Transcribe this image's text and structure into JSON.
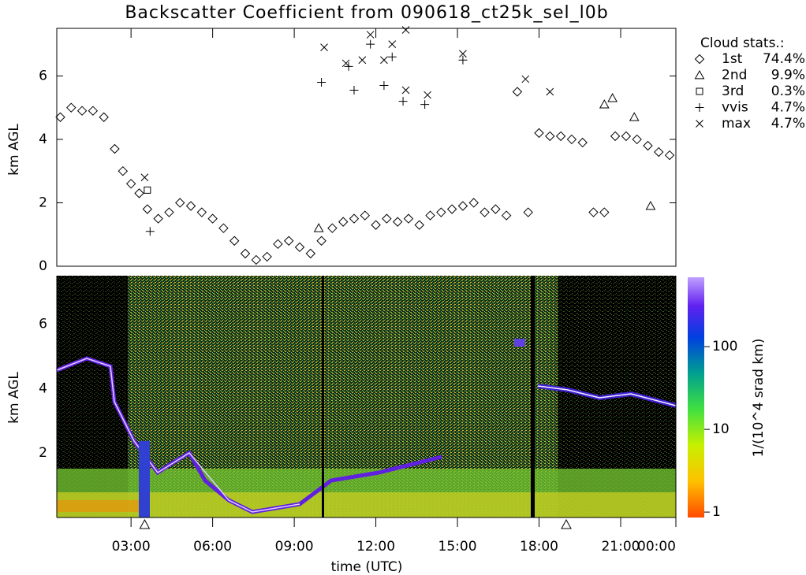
{
  "chart_data": [
    {
      "type": "scatter",
      "title": "Backscatter Coefficient from 090618_ct25k_sel_l0b",
      "ylabel": "km AGL",
      "xlim": [
        0.27,
        23.03
      ],
      "ylim": [
        0,
        7.5
      ],
      "yticks": [
        0,
        2,
        4,
        6
      ],
      "legend_title": "Cloud stats.:",
      "legend": "right",
      "series": [
        {
          "name": "1st",
          "stat_text": "74.4%",
          "marker": "diamond",
          "color": "#000000",
          "x": [
            0.4,
            0.8,
            1.2,
            1.6,
            2.0,
            2.4,
            2.7,
            3.0,
            3.3,
            3.6,
            4.0,
            4.4,
            4.8,
            5.2,
            5.6,
            6.0,
            6.4,
            6.8,
            7.2,
            7.6,
            8.0,
            8.4,
            8.8,
            9.2,
            9.6,
            10.0,
            10.4,
            10.8,
            11.2,
            11.6,
            12.0,
            12.4,
            12.8,
            13.2,
            13.6,
            14.0,
            14.4,
            14.8,
            15.2,
            15.6,
            16.0,
            16.4,
            16.8,
            17.2,
            17.6,
            18.0,
            18.4,
            18.8,
            19.2,
            19.6,
            20.0,
            20.4,
            20.8,
            21.2,
            21.6,
            22.0,
            22.4,
            22.8
          ],
          "y": [
            4.7,
            5.0,
            4.9,
            4.9,
            4.7,
            3.7,
            3.0,
            2.6,
            2.3,
            1.8,
            1.5,
            1.7,
            2.0,
            1.9,
            1.7,
            1.5,
            1.2,
            0.8,
            0.4,
            0.2,
            0.3,
            0.7,
            0.8,
            0.6,
            0.4,
            0.8,
            1.2,
            1.4,
            1.5,
            1.6,
            1.3,
            1.5,
            1.4,
            1.5,
            1.3,
            1.6,
            1.7,
            1.8,
            1.9,
            2.0,
            1.7,
            1.8,
            1.6,
            5.5,
            1.7,
            4.2,
            4.1,
            4.1,
            4.0,
            3.9,
            1.7,
            1.7,
            4.1,
            4.1,
            4.0,
            3.8,
            3.6,
            3.5
          ]
        },
        {
          "name": "2nd",
          "stat_text": "9.9%",
          "marker": "triangle",
          "color": "#000000",
          "x": [
            9.9,
            20.4,
            20.7,
            21.5,
            22.1
          ],
          "y": [
            1.2,
            5.1,
            5.3,
            4.7,
            1.9
          ]
        },
        {
          "name": "3rd",
          "stat_text": "0.3%",
          "marker": "square",
          "color": "#000000",
          "x": [
            3.6
          ],
          "y": [
            2.4
          ]
        },
        {
          "name": "vvis",
          "stat_text": "4.7%",
          "marker": "plus",
          "color": "#000000",
          "x": [
            3.7,
            10.0,
            11.0,
            11.2,
            11.8,
            12.3,
            12.6,
            13.0,
            13.8,
            15.2
          ],
          "y": [
            1.1,
            5.8,
            6.3,
            5.55,
            7.0,
            5.7,
            6.6,
            5.2,
            5.1,
            6.5
          ]
        },
        {
          "name": "max",
          "stat_text": "4.7%",
          "marker": "cross",
          "color": "#000000",
          "x": [
            3.5,
            10.1,
            10.9,
            11.5,
            11.8,
            12.3,
            12.6,
            13.1,
            13.1,
            13.9,
            15.2,
            17.5,
            18.4
          ],
          "y": [
            2.8,
            6.9,
            6.4,
            6.5,
            7.3,
            6.5,
            7.0,
            7.45,
            5.55,
            5.4,
            6.7,
            5.9,
            5.5
          ]
        }
      ]
    },
    {
      "type": "heatmap",
      "ylabel": "km AGL",
      "xlabel": "time (UTC)",
      "xlim": [
        0.27,
        23.03
      ],
      "ylim": [
        0,
        7.5
      ],
      "yticks": [
        2,
        4,
        6
      ],
      "xticks": [
        {
          "value": 3,
          "label": "03:00"
        },
        {
          "value": 6,
          "label": "06:00"
        },
        {
          "value": 9,
          "label": "09:00"
        },
        {
          "value": 12,
          "label": "12:00"
        },
        {
          "value": 15,
          "label": "15:00"
        },
        {
          "value": 18,
          "label": "18:00"
        },
        {
          "value": 21,
          "label": "21:00"
        },
        {
          "value": 23.03,
          "label": "00:00"
        }
      ],
      "event_markers_x": [
        3.5,
        19.0
      ],
      "colorbar": {
        "label": "1/(10^4 srad km)",
        "log": true,
        "lim": [
          0.86,
          690
        ],
        "ticks": [
          1,
          10,
          100
        ]
      }
    }
  ]
}
